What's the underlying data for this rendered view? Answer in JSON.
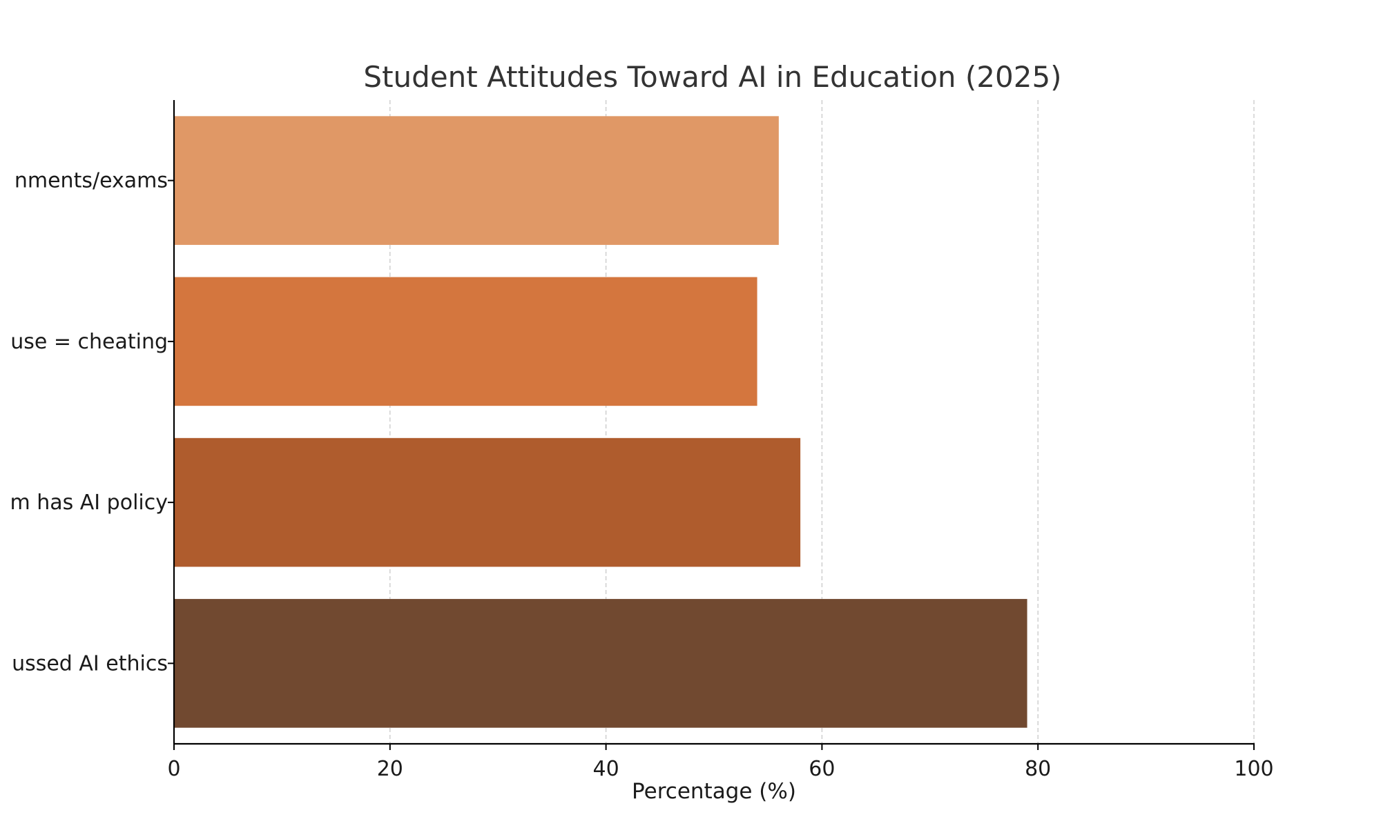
{
  "chart_data": {
    "type": "bar",
    "orientation": "horizontal",
    "title": "Student Attitudes Toward AI in Education (2025)",
    "xlabel": "Percentage (%)",
    "ylabel": "",
    "xlim": [
      0,
      100
    ],
    "xticks": [
      "0",
      "20",
      "40",
      "60",
      "80",
      "100"
    ],
    "grid": "vertical dashed",
    "categories": [
      "nments/exams",
      "use = cheating",
      "m has AI policy",
      "ussed AI ethics"
    ],
    "values": [
      56,
      54,
      58,
      79
    ],
    "colors": [
      "#E09866",
      "#D4763E",
      "#AF5C2D",
      "#714930"
    ]
  }
}
